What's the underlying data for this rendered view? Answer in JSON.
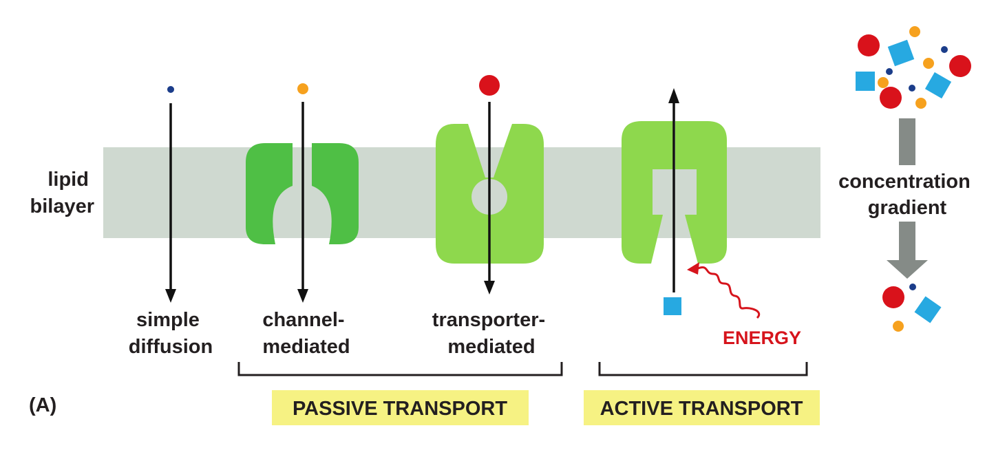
{
  "labels": {
    "lipid_bilayer": [
      "lipid",
      "bilayer"
    ],
    "simple_diffusion": [
      "simple",
      "diffusion"
    ],
    "channel_mediated": [
      "channel-",
      "mediated"
    ],
    "transporter_mediated": [
      "transporter-",
      "mediated"
    ],
    "energy": "ENERGY",
    "concentration_gradient": [
      "concentration",
      "gradient"
    ],
    "panel": "(A)",
    "passive_transport": "PASSIVE TRANSPORT",
    "active_transport": "ACTIVE TRANSPORT"
  },
  "colors": {
    "bilayer": "#cfd9d0",
    "channel_protein": "#4fbf45",
    "transporter_protein": "#8ed84d",
    "arrow": "#111111",
    "gray_arrow": "#858b87",
    "highlight_box": "#f6f283",
    "energy": "#d6141c",
    "solute_small_navy": "#1b3d8a",
    "solute_orange": "#f6a11e",
    "solute_red": "#d9121b",
    "solute_blue_square": "#27a9e1"
  }
}
